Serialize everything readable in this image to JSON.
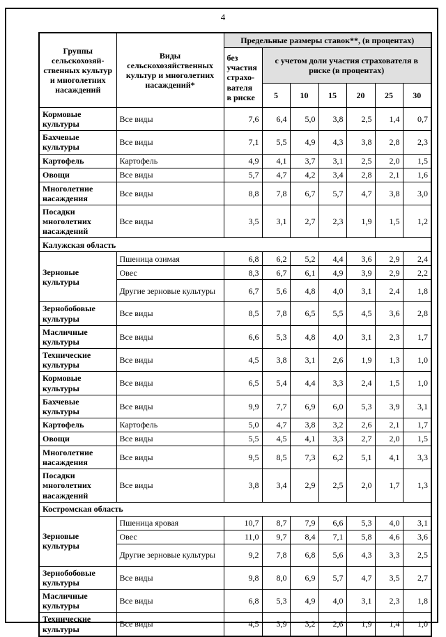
{
  "page": {
    "number": "4"
  },
  "accent_colors": {
    "header_shade": "#e0e0e0",
    "border": "#000000"
  },
  "table": {
    "header": {
      "col_group": "Группы сельскохозяй-ственных культур и многолетних насаждений",
      "col_kinds": "Виды сельскохозяйственных культур и многолетних насаждений*",
      "rates_title": "Предельные размеры ставок**,  (в процентах)",
      "no_participation": "без участия страхо-вателя в риске",
      "with_participation": "с учетом доли участия страхователя в риске (в процентах)",
      "percent_cols": [
        "5",
        "10",
        "15",
        "20",
        "25",
        "30"
      ]
    },
    "sections": [
      {
        "title": null,
        "rows": [
          {
            "group": "Кормовые культуры",
            "kind": "Все виды",
            "values": [
              "7,6",
              "6,4",
              "5,0",
              "3,8",
              "2,5",
              "1,4",
              "0,7"
            ]
          },
          {
            "group": "Бахчевые культуры",
            "kind": "Все виды",
            "values": [
              "7,1",
              "5,5",
              "4,9",
              "4,3",
              "3,8",
              "2,8",
              "2,3"
            ]
          },
          {
            "group": "Картофель",
            "kind": "Картофель",
            "values": [
              "4,9",
              "4,1",
              "3,7",
              "3,1",
              "2,5",
              "2,0",
              "1,5"
            ]
          },
          {
            "group": "Овощи",
            "kind": "Все виды",
            "values": [
              "5,7",
              "4,7",
              "4,2",
              "3,4",
              "2,8",
              "2,1",
              "1,6"
            ]
          },
          {
            "group": "Многолетние насаждения",
            "kind": "Все виды",
            "values": [
              "8,8",
              "7,8",
              "6,7",
              "5,7",
              "4,7",
              "3,8",
              "3,0"
            ]
          },
          {
            "group": "Посадки многолетних насаждений",
            "kind": "Все виды",
            "values": [
              "3,5",
              "3,1",
              "2,7",
              "2,3",
              "1,9",
              "1,5",
              "1,2"
            ]
          }
        ]
      },
      {
        "title": "Калужская область",
        "rows": [
          {
            "group": "Зерновые культуры",
            "rowspan": 3,
            "kind": "Пшеница озимая",
            "values": [
              "6,8",
              "6,2",
              "5,2",
              "4,4",
              "3,6",
              "2,9",
              "2,4"
            ]
          },
          {
            "group": null,
            "kind": "Овес",
            "values": [
              "8,3",
              "6,7",
              "6,1",
              "4,9",
              "3,9",
              "2,9",
              "2,2"
            ]
          },
          {
            "group": null,
            "kind": "Другие зерновые культуры",
            "tall": true,
            "values": [
              "6,7",
              "5,6",
              "4,8",
              "4,0",
              "3,1",
              "2,4",
              "1,8"
            ]
          },
          {
            "group": "Зернобобовые культуры",
            "kind": "Все виды",
            "values": [
              "8,5",
              "7,8",
              "6,5",
              "5,5",
              "4,5",
              "3,6",
              "2,8"
            ]
          },
          {
            "group": "Масличные культуры",
            "kind": "Все виды",
            "values": [
              "6,6",
              "5,3",
              "4,8",
              "4,0",
              "3,1",
              "2,3",
              "1,7"
            ]
          },
          {
            "group": "Технические культуры",
            "kind": "Все виды",
            "values": [
              "4,5",
              "3,8",
              "3,1",
              "2,6",
              "1,9",
              "1,3",
              "1,0"
            ]
          },
          {
            "group": "Кормовые культуры",
            "kind": "Все виды",
            "values": [
              "6,5",
              "5,4",
              "4,4",
              "3,3",
              "2,4",
              "1,5",
              "1,0"
            ]
          },
          {
            "group": "Бахчевые культуры",
            "kind": "Все виды",
            "values": [
              "9,9",
              "7,7",
              "6,9",
              "6,0",
              "5,3",
              "3,9",
              "3,1"
            ]
          },
          {
            "group": "Картофель",
            "kind": "Картофель",
            "values": [
              "5,0",
              "4,7",
              "3,8",
              "3,2",
              "2,6",
              "2,1",
              "1,7"
            ]
          },
          {
            "group": "Овощи",
            "kind": "Все виды",
            "values": [
              "5,5",
              "4,5",
              "4,1",
              "3,3",
              "2,7",
              "2,0",
              "1,5"
            ]
          },
          {
            "group": "Многолетние насаждения",
            "kind": "Все виды",
            "values": [
              "9,5",
              "8,5",
              "7,3",
              "6,2",
              "5,1",
              "4,1",
              "3,3"
            ]
          },
          {
            "group": "Посадки многолетних насаждений",
            "kind": "Все виды",
            "values": [
              "3,8",
              "3,4",
              "2,9",
              "2,5",
              "2,0",
              "1,7",
              "1,3"
            ]
          }
        ]
      },
      {
        "title": "Костромская область",
        "rows": [
          {
            "group": "Зерновые культуры",
            "rowspan": 3,
            "kind": "Пшеница яровая",
            "values": [
              "10,7",
              "8,7",
              "7,9",
              "6,6",
              "5,3",
              "4,0",
              "3,1"
            ]
          },
          {
            "group": null,
            "kind": "Овес",
            "values": [
              "11,0",
              "9,7",
              "8,4",
              "7,1",
              "5,8",
              "4,6",
              "3,6"
            ]
          },
          {
            "group": null,
            "kind": "Другие зерновые культуры",
            "tall": true,
            "values": [
              "9,2",
              "7,8",
              "6,8",
              "5,6",
              "4,3",
              "3,3",
              "2,5"
            ]
          },
          {
            "group": "Зернобобовые культуры",
            "kind": "Все виды",
            "values": [
              "9,8",
              "8,0",
              "6,9",
              "5,7",
              "4,7",
              "3,5",
              "2,7"
            ]
          },
          {
            "group": "Масличные культуры",
            "kind": "Все виды",
            "values": [
              "6,8",
              "5,3",
              "4,9",
              "4,0",
              "3,1",
              "2,3",
              "1,8"
            ]
          },
          {
            "group": "Технические культуры",
            "kind": "Все виды",
            "values": [
              "4,5",
              "3,9",
              "3,2",
              "2,6",
              "1,9",
              "1,4",
              "1,0"
            ]
          }
        ]
      }
    ]
  }
}
